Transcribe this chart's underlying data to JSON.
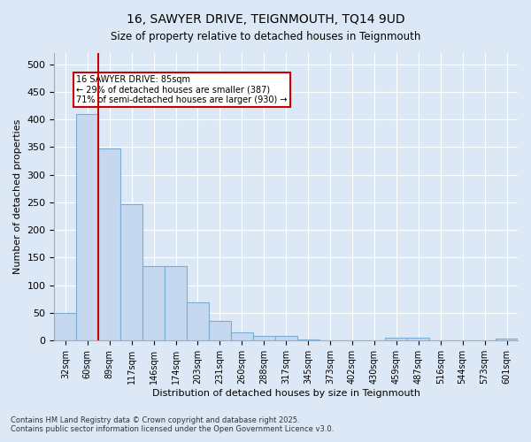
{
  "title_line1": "16, SAWYER DRIVE, TEIGNMOUTH, TQ14 9UD",
  "title_line2": "Size of property relative to detached houses in Teignmouth",
  "xlabel": "Distribution of detached houses by size in Teignmouth",
  "ylabel": "Number of detached properties",
  "categories": [
    "32sqm",
    "60sqm",
    "89sqm",
    "117sqm",
    "146sqm",
    "174sqm",
    "203sqm",
    "231sqm",
    "260sqm",
    "288sqm",
    "317sqm",
    "345sqm",
    "373sqm",
    "402sqm",
    "430sqm",
    "459sqm",
    "487sqm",
    "516sqm",
    "544sqm",
    "573sqm",
    "601sqm"
  ],
  "values": [
    50,
    410,
    348,
    246,
    135,
    135,
    70,
    35,
    15,
    8,
    8,
    2,
    1,
    1,
    1,
    5,
    5,
    1,
    1,
    1,
    3
  ],
  "bar_color": "#c5d8f0",
  "bar_edge_color": "#7aadd4",
  "property_line_x": 1,
  "property_line_color": "#cc0000",
  "annotation_text": "16 SAWYER DRIVE: 85sqm\n← 29% of detached houses are smaller (387)\n71% of semi-detached houses are larger (930) →",
  "annotation_box_color": "#cc0000",
  "background_color": "#dce8f5",
  "plot_bg_color": "#dce8f5",
  "footer_line1": "Contains HM Land Registry data © Crown copyright and database right 2025.",
  "footer_line2": "Contains public sector information licensed under the Open Government Licence v3.0.",
  "ylim": [
    0,
    520
  ],
  "yticks": [
    0,
    50,
    100,
    150,
    200,
    250,
    300,
    350,
    400,
    450,
    500
  ]
}
